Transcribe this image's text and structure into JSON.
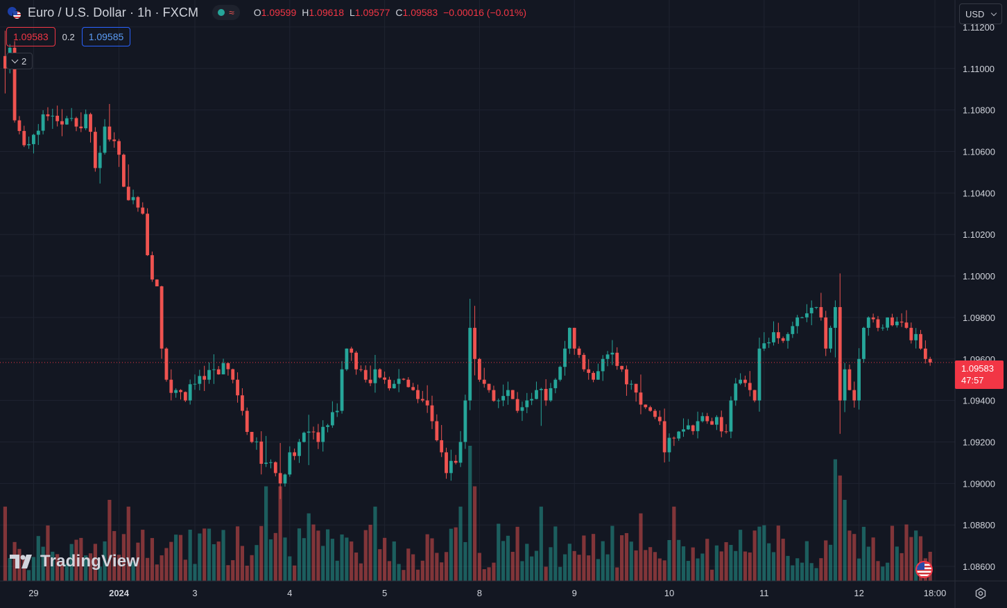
{
  "header": {
    "symbol_title": "Euro / U.S. Dollar · 1h · FXCM",
    "market_status_icon": "market-open-dot",
    "ohlc": {
      "open_label": "O",
      "open": "1.09599",
      "high_label": "H",
      "high": "1.09618",
      "low_label": "L",
      "low": "1.09577",
      "close_label": "C",
      "close": "1.09583",
      "change": "−0.00016 (−0.01%)"
    }
  },
  "trade": {
    "sell_price": "1.09583",
    "spread": "0.2",
    "buy_price": "1.09585"
  },
  "indicators_toggle": {
    "count": "2"
  },
  "price_scale": {
    "currency": "USD"
  },
  "last_price": {
    "value": "1.09583",
    "countdown": "47:57"
  },
  "branding": {
    "name": "TradingView"
  },
  "colors": {
    "up": "#26a69a",
    "down": "#ef5350",
    "background": "#131722",
    "grid": "#1f2330",
    "text": "#d1d4dc"
  },
  "chart_data": {
    "type": "candlestick",
    "timeframe": "1h",
    "y_ticks": [
      "1.11200",
      "1.11000",
      "1.10800",
      "1.10600",
      "1.10400",
      "1.10200",
      "1.10000",
      "1.09800",
      "1.09600",
      "1.09400",
      "1.09200",
      "1.09000",
      "1.08800",
      "1.08600"
    ],
    "x_ticks": [
      {
        "label": "29",
        "bar": 6
      },
      {
        "label": "2024",
        "bar": 24
      },
      {
        "label": "3",
        "bar": 40
      },
      {
        "label": "4",
        "bar": 60
      },
      {
        "label": "5",
        "bar": 80
      },
      {
        "label": "8",
        "bar": 100
      },
      {
        "label": "9",
        "bar": 120
      },
      {
        "label": "10",
        "bar": 140
      },
      {
        "label": "11",
        "bar": 160
      },
      {
        "label": "12",
        "bar": 180
      },
      {
        "label": "18:00",
        "bar": 196
      }
    ],
    "ylim": [
      1.0853,
      1.1133
    ],
    "last_price": 1.09583,
    "waypoints": [
      [
        0,
        1.11
      ],
      [
        1,
        1.111
      ],
      [
        2,
        1.1075
      ],
      [
        4,
        1.1063
      ],
      [
        7,
        1.107
      ],
      [
        9,
        1.1077
      ],
      [
        12,
        1.1073
      ],
      [
        15,
        1.1072
      ],
      [
        17,
        1.1078
      ],
      [
        19,
        1.1052
      ],
      [
        21,
        1.1072
      ],
      [
        23,
        1.1065
      ],
      [
        25,
        1.1043
      ],
      [
        27,
        1.1038
      ],
      [
        29,
        1.103
      ],
      [
        30,
        1.101
      ],
      [
        32,
        1.0995
      ],
      [
        33,
        1.0965
      ],
      [
        34,
        1.095
      ],
      [
        36,
        1.0945
      ],
      [
        38,
        1.094
      ],
      [
        40,
        1.0948
      ],
      [
        42,
        1.095
      ],
      [
        44,
        1.0955
      ],
      [
        46,
        1.0958
      ],
      [
        48,
        1.095
      ],
      [
        50,
        1.0935
      ],
      [
        52,
        1.092
      ],
      [
        55,
        1.091
      ],
      [
        57,
        1.0905
      ],
      [
        58,
        1.09
      ],
      [
        60,
        1.0915
      ],
      [
        62,
        1.092
      ],
      [
        64,
        1.0925
      ],
      [
        66,
        1.092
      ],
      [
        68,
        1.0928
      ],
      [
        70,
        1.0935
      ],
      [
        71,
        1.0955
      ],
      [
        72,
        1.0965
      ],
      [
        74,
        1.0955
      ],
      [
        76,
        1.095
      ],
      [
        78,
        1.0955
      ],
      [
        80,
        1.095
      ],
      [
        82,
        1.0948
      ],
      [
        84,
        1.095
      ],
      [
        86,
        1.0945
      ],
      [
        88,
        1.094
      ],
      [
        90,
        1.093
      ],
      [
        92,
        1.0915
      ],
      [
        93,
        1.0905
      ],
      [
        95,
        1.091
      ],
      [
        96,
        1.092
      ],
      [
        97,
        1.094
      ],
      [
        98,
        1.0975
      ],
      [
        99,
        1.096
      ],
      [
        100,
        1.095
      ],
      [
        102,
        1.0945
      ],
      [
        104,
        1.094
      ],
      [
        106,
        1.0945
      ],
      [
        108,
        1.0935
      ],
      [
        110,
        1.094
      ],
      [
        112,
        1.0945
      ],
      [
        114,
        1.094
      ],
      [
        116,
        1.095
      ],
      [
        118,
        1.0965
      ],
      [
        119,
        1.0975
      ],
      [
        120,
        1.0965
      ],
      [
        122,
        1.0955
      ],
      [
        124,
        1.095
      ],
      [
        126,
        1.096
      ],
      [
        128,
        1.0963
      ],
      [
        130,
        1.0955
      ],
      [
        132,
        1.0948
      ],
      [
        134,
        1.0938
      ],
      [
        136,
        1.0935
      ],
      [
        138,
        1.093
      ],
      [
        139,
        1.0915
      ],
      [
        140,
        1.0922
      ],
      [
        142,
        1.0925
      ],
      [
        144,
        1.0928
      ],
      [
        146,
        1.093
      ],
      [
        148,
        1.093
      ],
      [
        150,
        1.0932
      ],
      [
        152,
        1.0925
      ],
      [
        153,
        1.094
      ],
      [
        155,
        1.095
      ],
      [
        157,
        1.0945
      ],
      [
        158,
        1.094
      ],
      [
        159,
        1.0965
      ],
      [
        161,
        1.0968
      ],
      [
        163,
        1.097
      ],
      [
        165,
        1.0972
      ],
      [
        167,
        1.098
      ],
      [
        169,
        1.0982
      ],
      [
        171,
        1.0985
      ],
      [
        172,
        1.098
      ],
      [
        173,
        1.0965
      ],
      [
        174,
        1.0975
      ],
      [
        175,
        1.0985
      ],
      [
        176,
        1.094
      ],
      [
        177,
        1.0955
      ],
      [
        178,
        1.0945
      ],
      [
        179,
        1.094
      ],
      [
        180,
        1.096
      ],
      [
        181,
        1.0975
      ],
      [
        182,
        1.098
      ],
      [
        184,
        1.0975
      ],
      [
        186,
        1.098
      ],
      [
        188,
        1.0978
      ],
      [
        190,
        1.0975
      ],
      [
        192,
        1.0972
      ],
      [
        193,
        1.0965
      ],
      [
        194,
        1.096
      ],
      [
        195,
        1.09583
      ]
    ],
    "volume_spikes": [
      [
        0,
        0.55
      ],
      [
        22,
        0.6
      ],
      [
        26,
        0.55
      ],
      [
        55,
        0.7
      ],
      [
        58,
        0.7
      ],
      [
        64,
        0.5
      ],
      [
        78,
        0.55
      ],
      [
        96,
        0.55
      ],
      [
        98,
        1.0
      ],
      [
        99,
        0.7
      ],
      [
        113,
        0.55
      ],
      [
        134,
        0.5
      ],
      [
        141,
        0.55
      ],
      [
        175,
        0.9
      ],
      [
        176,
        0.78
      ],
      [
        177,
        0.6
      ]
    ]
  }
}
